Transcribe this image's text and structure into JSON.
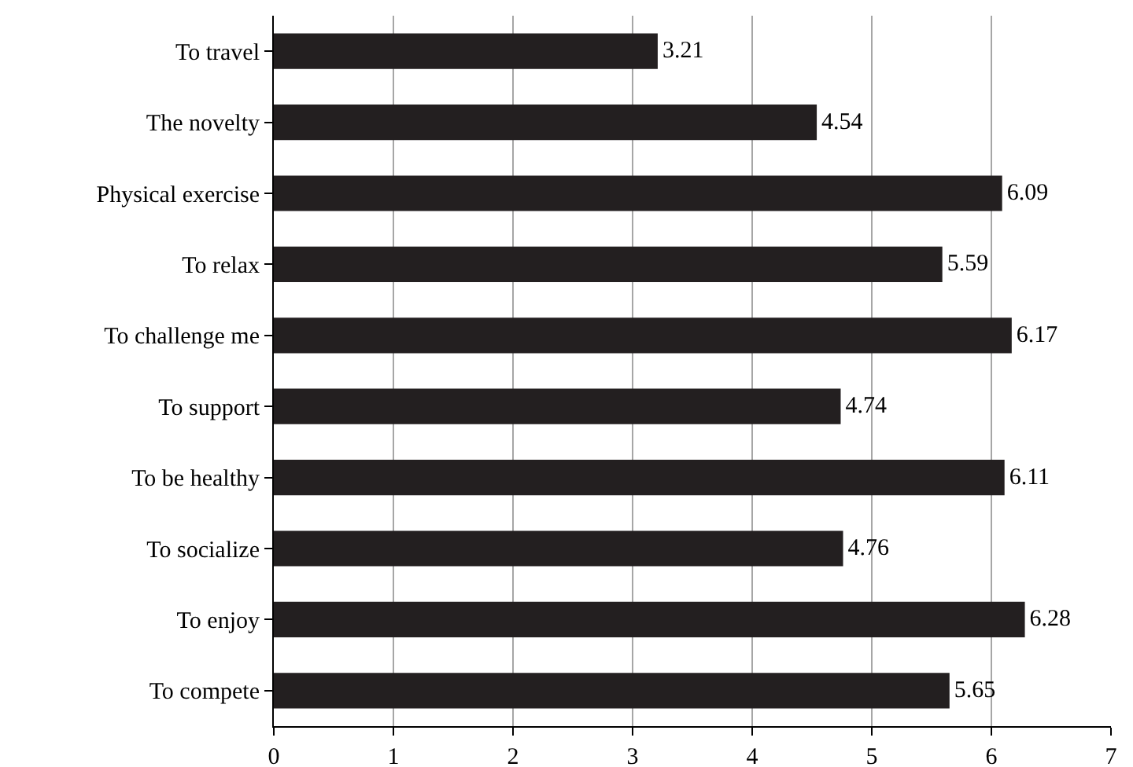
{
  "chart_data": {
    "type": "bar",
    "orientation": "horizontal",
    "categories": [
      "To travel",
      "The novelty",
      "Physical exercise",
      "To relax",
      "To challenge me",
      "To support",
      "To be healthy",
      "To socialize",
      "To enjoy",
      "To compete"
    ],
    "values": [
      3.21,
      4.54,
      6.09,
      5.59,
      6.17,
      4.74,
      6.11,
      4.76,
      6.28,
      5.65
    ],
    "color": "#231f20",
    "xlim": [
      0,
      7
    ],
    "xticks": [
      0,
      1,
      2,
      3,
      4,
      5,
      6,
      7
    ],
    "grid": "x",
    "data_labels": true
  }
}
